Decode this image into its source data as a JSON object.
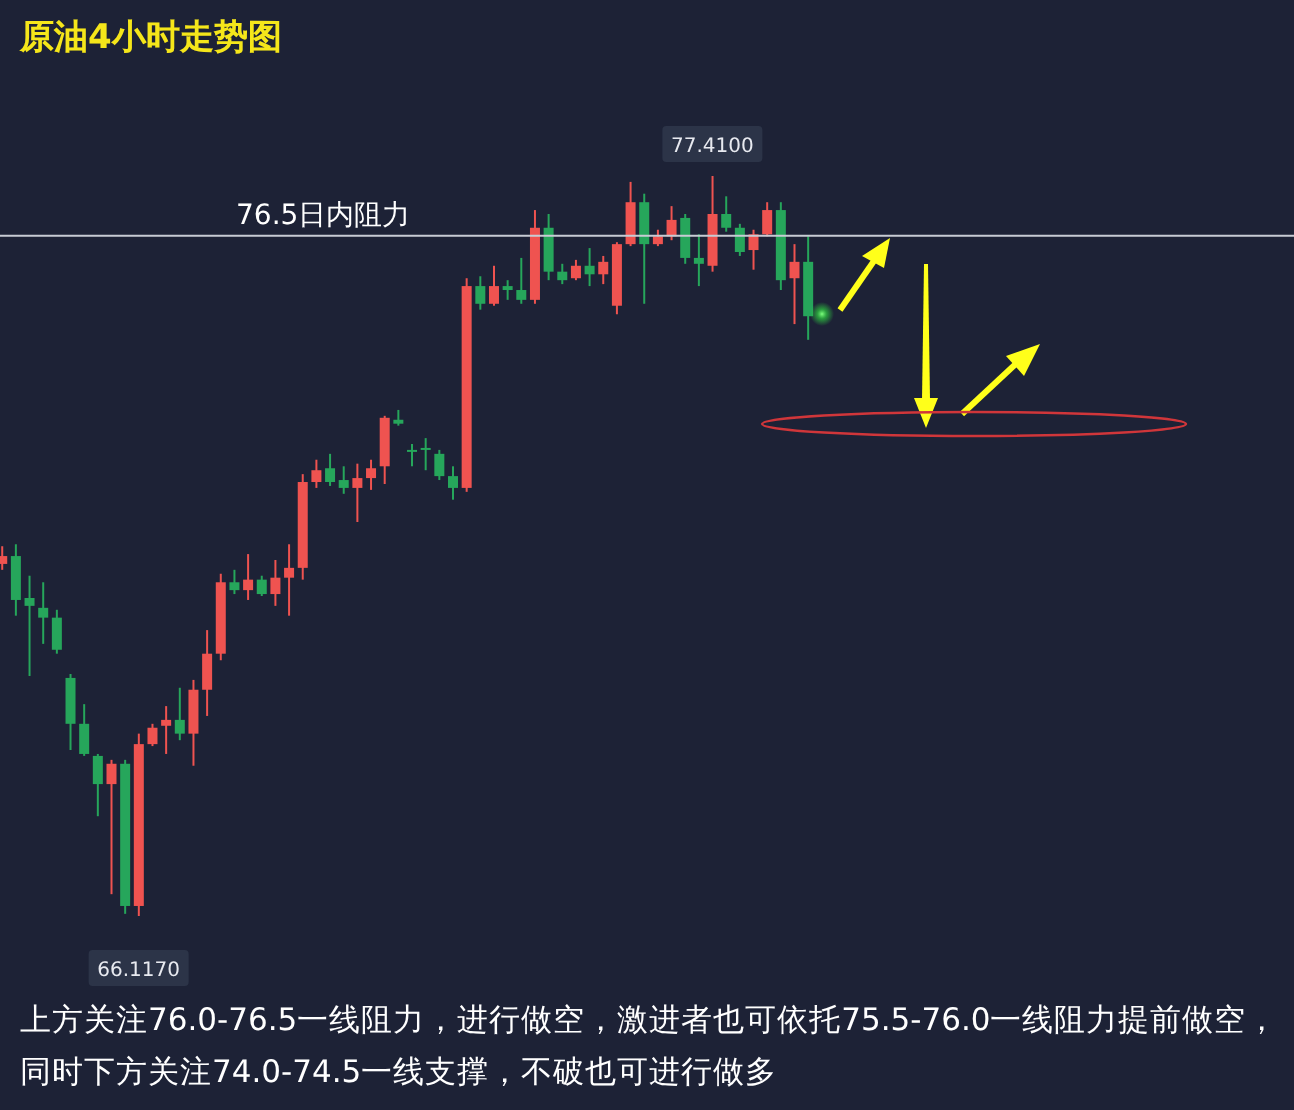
{
  "chart_data": {
    "type": "candlestick",
    "title": "原油4小时走势图",
    "categories": [
      null,
      null,
      null,
      null,
      null,
      null,
      null,
      null,
      null,
      null,
      null,
      null,
      null,
      null,
      null,
      null,
      null,
      null,
      null,
      null,
      null,
      null,
      null,
      null,
      null,
      null,
      null,
      null,
      null,
      null,
      null,
      null,
      null,
      null,
      null,
      null,
      null,
      null,
      null,
      null,
      null,
      null,
      null,
      null,
      null,
      null,
      null,
      null,
      null,
      null,
      null,
      null,
      null,
      null,
      null,
      null,
      null,
      null,
      null,
      null
    ],
    "ohlc": [
      [
        71.49,
        71.76,
        71.4,
        71.61
      ],
      [
        71.61,
        71.79,
        70.7,
        70.94
      ],
      [
        70.97,
        71.31,
        69.78,
        70.85
      ],
      [
        70.82,
        71.21,
        70.27,
        70.67
      ],
      [
        70.67,
        70.79,
        70.12,
        70.18
      ],
      [
        69.75,
        69.81,
        68.65,
        69.05
      ],
      [
        69.05,
        69.35,
        68.56,
        68.59
      ],
      [
        68.56,
        68.59,
        67.64,
        68.13
      ],
      [
        68.13,
        68.5,
        66.45,
        68.44
      ],
      [
        68.44,
        68.5,
        66.15,
        66.27
      ],
      [
        66.27,
        68.9,
        66.117,
        68.74
      ],
      [
        68.74,
        69.05,
        68.71,
        68.99
      ],
      [
        69.02,
        69.32,
        68.59,
        69.11
      ],
      [
        69.11,
        69.6,
        68.8,
        68.9
      ],
      [
        68.9,
        69.72,
        68.41,
        69.57
      ],
      [
        69.57,
        70.48,
        69.17,
        70.12
      ],
      [
        70.12,
        71.34,
        70.02,
        71.21
      ],
      [
        71.21,
        71.4,
        71.03,
        71.09
      ],
      [
        71.09,
        71.64,
        70.94,
        71.25
      ],
      [
        71.25,
        71.31,
        71.0,
        71.03
      ],
      [
        71.03,
        71.55,
        70.85,
        71.28
      ],
      [
        71.28,
        71.79,
        70.7,
        71.43
      ],
      [
        71.43,
        72.86,
        71.25,
        72.74
      ],
      [
        72.74,
        73.08,
        72.65,
        72.92
      ],
      [
        72.95,
        73.17,
        72.68,
        72.74
      ],
      [
        72.77,
        72.98,
        72.56,
        72.65
      ],
      [
        72.65,
        73.02,
        72.13,
        72.8
      ],
      [
        72.8,
        73.08,
        72.62,
        72.95
      ],
      [
        72.98,
        73.75,
        72.71,
        73.72
      ],
      [
        73.69,
        73.84,
        73.6,
        73.63
      ],
      [
        73.23,
        73.32,
        72.98,
        73.2
      ],
      [
        73.26,
        73.41,
        72.92,
        73.23
      ],
      [
        73.17,
        73.23,
        72.77,
        72.83
      ],
      [
        72.83,
        72.98,
        72.47,
        72.65
      ],
      [
        72.65,
        75.85,
        72.59,
        75.73
      ],
      [
        75.73,
        75.88,
        75.37,
        75.46
      ],
      [
        75.46,
        76.04,
        75.43,
        75.73
      ],
      [
        75.73,
        75.82,
        75.52,
        75.67
      ],
      [
        75.67,
        76.16,
        75.46,
        75.52
      ],
      [
        75.52,
        76.89,
        75.46,
        76.62
      ],
      [
        76.62,
        76.83,
        75.82,
        75.95
      ],
      [
        75.95,
        76.07,
        75.76,
        75.82
      ],
      [
        75.85,
        76.13,
        75.82,
        76.04
      ],
      [
        76.04,
        76.31,
        75.73,
        75.91
      ],
      [
        75.91,
        76.19,
        75.76,
        76.1
      ],
      [
        75.43,
        76.4,
        75.3,
        76.37
      ],
      [
        76.37,
        77.32,
        76.34,
        77.01
      ],
      [
        77.01,
        77.14,
        75.46,
        76.37
      ],
      [
        76.37,
        76.59,
        76.34,
        76.49
      ],
      [
        76.49,
        76.95,
        76.43,
        76.74
      ],
      [
        76.77,
        76.83,
        76.07,
        76.16
      ],
      [
        76.16,
        76.52,
        75.73,
        76.07
      ],
      [
        76.04,
        77.41,
        75.95,
        76.83
      ],
      [
        76.83,
        77.1,
        76.56,
        76.62
      ],
      [
        76.62,
        76.68,
        76.19,
        76.25
      ],
      [
        76.28,
        76.59,
        75.98,
        76.52
      ],
      [
        76.52,
        77.01,
        76.49,
        76.89
      ],
      [
        76.89,
        77.01,
        75.67,
        75.82
      ],
      [
        75.85,
        76.37,
        75.15,
        76.1
      ],
      [
        76.1,
        76.49,
        74.91,
        75.27
      ]
    ],
    "colors": [
      "#ef5350",
      "#26a65b",
      "#26a65b",
      "#26a65b",
      "#26a65b",
      "#26a65b",
      "#26a65b",
      "#26a65b",
      "#ef5350",
      "#26a65b",
      "#ef5350",
      "#ef5350",
      "#ef5350",
      "#26a65b",
      "#ef5350",
      "#ef5350",
      "#ef5350",
      "#26a65b",
      "#ef5350",
      "#26a65b",
      "#ef5350",
      "#ef5350",
      "#ef5350",
      "#ef5350",
      "#26a65b",
      "#26a65b",
      "#ef5350",
      "#ef5350",
      "#ef5350",
      "#26a65b",
      "#26a65b",
      "#26a65b",
      "#26a65b",
      "#26a65b",
      "#ef5350",
      "#26a65b",
      "#ef5350",
      "#26a65b",
      "#26a65b",
      "#ef5350",
      "#26a65b",
      "#26a65b",
      "#ef5350",
      "#26a65b",
      "#ef5350",
      "#ef5350",
      "#ef5350",
      "#26a65b",
      "#ef5350",
      "#ef5350",
      "#26a65b",
      "#26a65b",
      "#ef5350",
      "#26a65b",
      "#26a65b",
      "#ef5350",
      "#ef5350",
      "#26a65b",
      "#ef5350",
      "#26a65b"
    ],
    "ref_lines": [
      {
        "axis": "y",
        "value": 76.5,
        "label": "76.5日内阻力",
        "color": "#c8ccd4"
      }
    ],
    "annotations": [
      {
        "text": "77.4100",
        "y": 77.41
      },
      {
        "text": "66.1170",
        "y": 66.117
      },
      "上方关注76.0-76.5一线阻力，进行做空，激进者也可依托75.5-76.0一线阻力提前做空，同时下方关注74.0-74.5一线支撑，不破也可进行做多"
    ],
    "grid": false,
    "legend": false
  }
}
